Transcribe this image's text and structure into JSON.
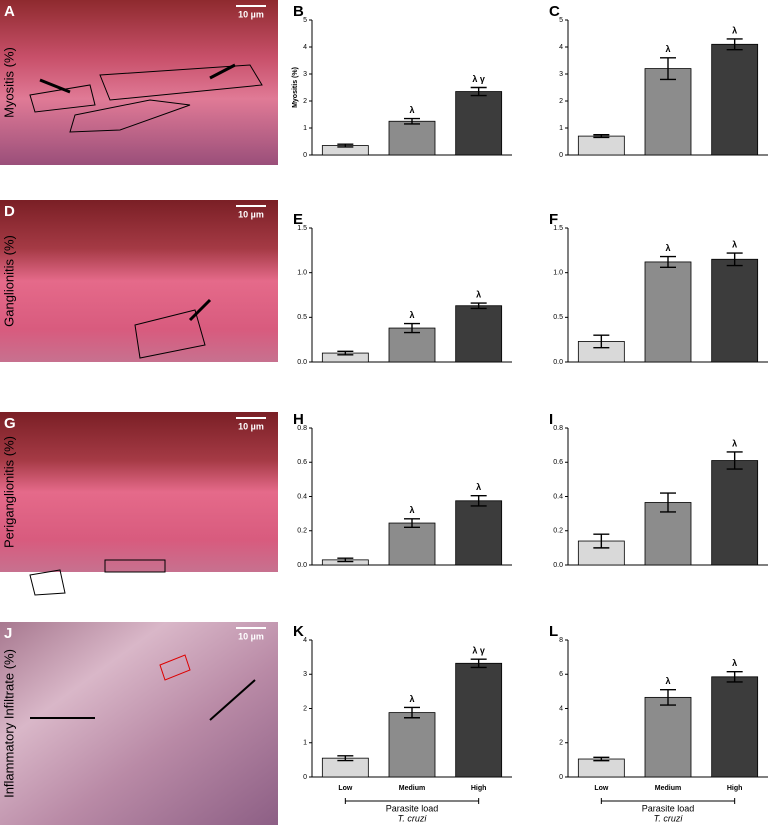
{
  "figure": {
    "rows": [
      {
        "label": "Myositis (%)",
        "panel": "A",
        "scale_bar": "10 µm"
      },
      {
        "label": "Ganglionitis (%)",
        "panel": "D",
        "scale_bar": "10 µm"
      },
      {
        "label": "Periganglionitis (%)",
        "panel": "G",
        "scale_bar": "10 µm"
      },
      {
        "label": "Inflammatory Infiltrate (%)",
        "panel": "J",
        "scale_bar": "10 µm"
      }
    ]
  },
  "chart_data": [
    {
      "type": "bar",
      "panel": "B",
      "ylabel": "Myositis (%)",
      "categories": [
        null,
        null,
        null
      ],
      "values": [
        0.35,
        1.25,
        2.35
      ],
      "errors": [
        0.05,
        0.1,
        0.15
      ],
      "annotations": [
        null,
        "λ",
        "λ γ"
      ],
      "colors": [
        "#d9d9d9",
        "#8c8c8c",
        "#3c3c3c"
      ],
      "ylim": [
        0,
        5
      ],
      "yticks": [
        0,
        1,
        2,
        3,
        4,
        5
      ]
    },
    {
      "type": "bar",
      "panel": "C",
      "categories": [
        null,
        null,
        null
      ],
      "values": [
        0.7,
        3.2,
        4.1
      ],
      "errors": [
        0.05,
        0.4,
        0.2
      ],
      "annotations": [
        null,
        "λ",
        "λ"
      ],
      "colors": [
        "#d9d9d9",
        "#8c8c8c",
        "#3c3c3c"
      ],
      "ylim": [
        0,
        5
      ],
      "yticks": [
        0,
        1,
        2,
        3,
        4,
        5
      ]
    },
    {
      "type": "bar",
      "panel": "E",
      "categories": [
        null,
        null,
        null
      ],
      "values": [
        0.1,
        0.38,
        0.63
      ],
      "errors": [
        0.02,
        0.05,
        0.03
      ],
      "annotations": [
        null,
        "λ",
        "λ"
      ],
      "colors": [
        "#d9d9d9",
        "#8c8c8c",
        "#3c3c3c"
      ],
      "ylim": [
        0,
        1.5
      ],
      "yticks": [
        {
          "value": 0,
          "label": "0.0"
        },
        0.5,
        {
          "value": 1,
          "label": "1.0"
        },
        1.5
      ]
    },
    {
      "type": "bar",
      "panel": "F",
      "categories": [
        null,
        null,
        null
      ],
      "values": [
        0.23,
        1.12,
        1.15
      ],
      "errors": [
        0.07,
        0.06,
        0.07
      ],
      "annotations": [
        null,
        "λ",
        "λ"
      ],
      "colors": [
        "#d9d9d9",
        "#8c8c8c",
        "#3c3c3c"
      ],
      "ylim": [
        0,
        1.5
      ],
      "yticks": [
        {
          "value": 0,
          "label": "0.0"
        },
        0.5,
        {
          "value": 1,
          "label": "1.0"
        },
        1.5
      ]
    },
    {
      "type": "bar",
      "panel": "H",
      "categories": [
        null,
        null,
        null
      ],
      "values": [
        0.03,
        0.245,
        0.375
      ],
      "errors": [
        0.01,
        0.025,
        0.03
      ],
      "annotations": [
        null,
        "λ",
        "λ"
      ],
      "colors": [
        "#d9d9d9",
        "#8c8c8c",
        "#3c3c3c"
      ],
      "ylim": [
        0,
        0.8
      ],
      "yticks": [
        {
          "value": 0,
          "label": "0.0"
        },
        0.2,
        0.4,
        0.6,
        0.8
      ]
    },
    {
      "type": "bar",
      "panel": "I",
      "categories": [
        null,
        null,
        null
      ],
      "values": [
        0.14,
        0.365,
        0.61
      ],
      "errors": [
        0.04,
        0.055,
        0.05
      ],
      "annotations": [
        null,
        null,
        "λ"
      ],
      "colors": [
        "#d9d9d9",
        "#8c8c8c",
        "#3c3c3c"
      ],
      "ylim": [
        0,
        0.8
      ],
      "yticks": [
        {
          "value": 0,
          "label": "0.0"
        },
        0.2,
        0.4,
        0.6,
        0.8
      ]
    },
    {
      "type": "bar",
      "panel": "K",
      "categories": [
        "Low",
        "Medium",
        "High"
      ],
      "xlabel": "Parasite load",
      "xlabel_sub": "T. cruzi",
      "values": [
        0.55,
        1.88,
        3.32
      ],
      "errors": [
        0.07,
        0.15,
        0.12
      ],
      "annotations": [
        null,
        "λ",
        "λ γ"
      ],
      "colors": [
        "#d9d9d9",
        "#8c8c8c",
        "#3c3c3c"
      ],
      "ylim": [
        0,
        4
      ],
      "yticks": [
        0,
        1,
        2,
        3,
        4
      ]
    },
    {
      "type": "bar",
      "panel": "L",
      "categories": [
        "Low",
        "Medium",
        "High"
      ],
      "xlabel": "Parasite load",
      "xlabel_sub": "T. cruzi",
      "values": [
        1.05,
        4.65,
        5.85
      ],
      "errors": [
        0.1,
        0.45,
        0.3
      ],
      "annotations": [
        null,
        "λ",
        "λ"
      ],
      "colors": [
        "#d9d9d9",
        "#8c8c8c",
        "#3c3c3c"
      ],
      "ylim": [
        0,
        8
      ],
      "yticks": [
        0,
        2,
        4,
        6,
        8
      ]
    }
  ]
}
